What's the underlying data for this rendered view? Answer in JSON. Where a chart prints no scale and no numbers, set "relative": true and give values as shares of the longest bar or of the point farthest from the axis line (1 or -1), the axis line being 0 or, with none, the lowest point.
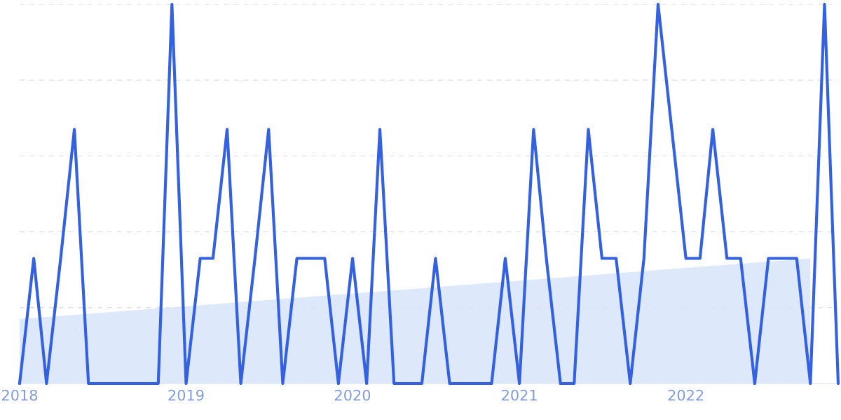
{
  "chart_data": {
    "type": "line",
    "relative": true,
    "grid": "y",
    "x": [
      "2018-01",
      "2018-02",
      "2018-03",
      "2018-04",
      "2018-05",
      "2018-06",
      "2018-07",
      "2018-08",
      "2018-09",
      "2018-10",
      "2018-11",
      "2018-12",
      "2019-01",
      "2019-02",
      "2019-03",
      "2019-04",
      "2019-05",
      "2019-06",
      "2019-07",
      "2019-08",
      "2019-09",
      "2019-10",
      "2019-11",
      "2019-12",
      "2020-01",
      "2020-02",
      "2020-03",
      "2020-04",
      "2020-05",
      "2020-06",
      "2020-07",
      "2020-08",
      "2020-09",
      "2020-10",
      "2020-11",
      "2020-12",
      "2021-01",
      "2021-02",
      "2021-03",
      "2021-04",
      "2021-05",
      "2021-06",
      "2021-07",
      "2021-08",
      "2021-09",
      "2021-10",
      "2021-11",
      "2021-12",
      "2022-01",
      "2022-02",
      "2022-03",
      "2022-04",
      "2022-05",
      "2022-06",
      "2022-07",
      "2022-08",
      "2022-09",
      "2022-10",
      "2022-11",
      "2022-12"
    ],
    "xlim": [
      "2018-01",
      "2022-12"
    ],
    "xticks": [
      {
        "value": "2018-01",
        "label": "2018"
      },
      {
        "value": "2019-01",
        "label": "2019"
      },
      {
        "value": "2020-01",
        "label": "2020"
      },
      {
        "value": "2021-01",
        "label": "2021"
      },
      {
        "value": "2022-01",
        "label": "2022"
      }
    ],
    "series": [
      {
        "type": "area",
        "color": "#dde9fb",
        "x": [
          "2018-01",
          "2022-10"
        ],
        "values": [
          0.17,
          0.33
        ]
      },
      {
        "color": "#3461e0",
        "values": [
          0,
          0.33,
          0,
          0.33,
          0.67,
          0,
          0,
          0,
          0,
          0,
          0,
          1,
          0,
          0.33,
          0.33,
          0.67,
          0,
          0.33,
          0.67,
          0,
          0.33,
          0.33,
          0.33,
          0,
          0.33,
          0,
          0.67,
          0,
          0,
          0,
          0.33,
          0,
          0,
          0,
          0,
          0.33,
          0,
          0.67,
          0.33,
          0,
          0,
          0.67,
          0.33,
          0.33,
          0,
          0.33,
          1,
          0.67,
          0.33,
          0.33,
          0.67,
          0.33,
          0.33,
          0,
          0.33,
          0.33,
          0.33,
          0,
          1,
          0
        ]
      }
    ]
  }
}
